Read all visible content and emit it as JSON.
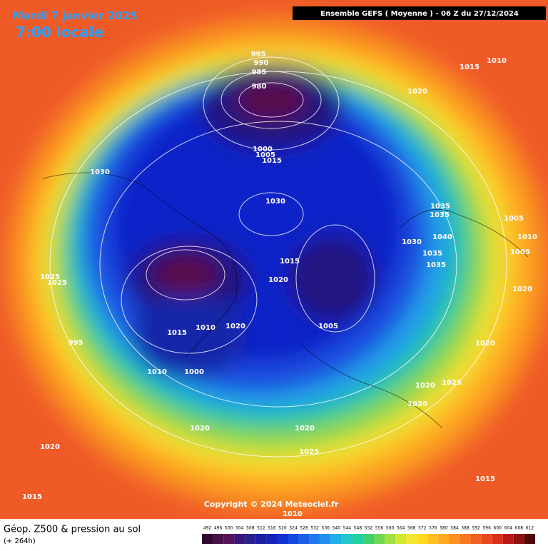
{
  "title": "Mardi 7 janvier 2025",
  "subtitle": "7:00 locale",
  "header": "Ensemble GEFS  ( Moyenne )  -  06 Z du 27/12/2024",
  "copyright": "Copyright © 2024 Meteociel.fr",
  "footer": {
    "label": "Géop. Z500 & pression au sol",
    "lead": "(+ 264h)"
  },
  "scale": [
    492,
    496,
    500,
    504,
    508,
    512,
    516,
    520,
    524,
    528,
    532,
    536,
    540,
    544,
    548,
    552,
    556,
    560,
    564,
    568,
    572,
    576,
    580,
    584,
    588,
    592,
    596,
    600,
    604,
    608,
    612
  ],
  "isobar_labels": [
    995,
    990,
    985,
    980,
    1000,
    1005,
    1015,
    1030,
    1020,
    1015,
    1010,
    1030,
    1035,
    1035,
    1040,
    1030,
    1035,
    1035,
    1005,
    1010,
    1005,
    1015,
    1025,
    1025,
    1020,
    1020,
    1020,
    1010,
    1015,
    1005,
    1010,
    1000,
    995,
    1020,
    1020,
    1025,
    1020,
    1020,
    1025,
    1020,
    1015,
    1015,
    1010,
    1020
  ]
}
